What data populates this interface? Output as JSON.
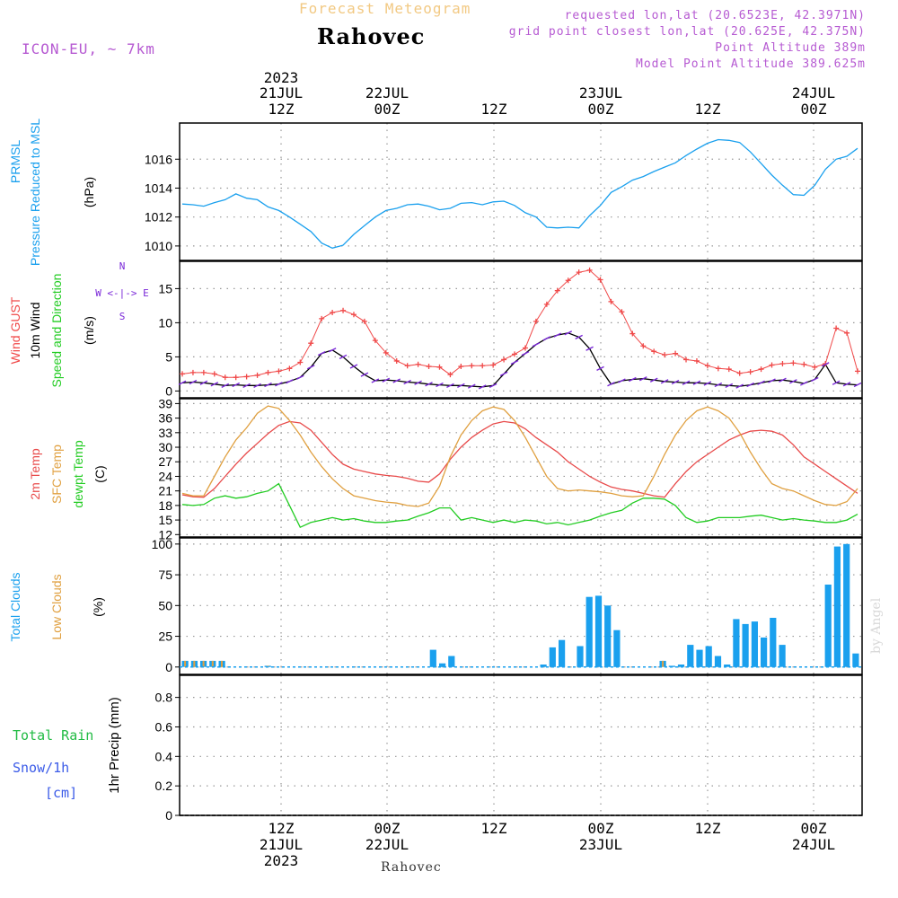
{
  "header": {
    "subtitle": "Forecast Meteogram",
    "title": "Rahovec",
    "model": "ICON-EU, ~ 7km",
    "info": [
      "requested lon,lat (20.6523E, 42.3971N)",
      "grid point closest lon,lat (20.625E, 42.375N)",
      "Point Altitude 389m",
      "Model Point Altitude 389.625m"
    ]
  },
  "footer": {
    "location": "Rahovec"
  },
  "credit": "by Angel",
  "colors": {
    "pressure": "#1aa0ee",
    "gust": "#f04848",
    "wind": "#000000",
    "windArrow": "#7a28d8",
    "temp2m": "#e84a4a",
    "sfcTemp": "#e0a040",
    "dewpt": "#22cc22",
    "totalClouds": "#1aa0ee",
    "lowClouds": "#e0a040",
    "rain": "#22bb44",
    "snow": "#3b5be8",
    "grid": "#999999"
  },
  "chart_data": [
    {
      "panel": "pressure",
      "type": "line",
      "ylabels": [
        "PRMSL",
        "Pressure Reduced to MSL"
      ],
      "unit": "(hPa)",
      "ylim": [
        1009,
        1018.5
      ],
      "yticks": [
        1010,
        1012,
        1014,
        1016
      ],
      "series": [
        {
          "x": [
            0,
            1,
            2,
            3,
            4,
            5,
            6,
            7,
            8,
            9,
            10,
            11,
            12,
            13,
            14,
            15,
            16,
            17,
            18,
            19,
            20,
            21,
            22,
            23,
            24,
            25,
            26,
            27,
            28,
            29,
            30,
            31,
            32,
            33,
            34,
            35,
            36,
            37,
            38,
            39,
            40,
            41,
            42,
            43,
            44,
            45,
            46,
            47,
            48,
            49,
            50,
            51,
            52,
            53,
            54,
            55,
            56,
            57,
            58,
            59,
            60,
            61,
            62,
            63
          ],
          "values": [
            1012.9,
            1012.85,
            1012.75,
            1013.0,
            1013.2,
            1013.6,
            1013.3,
            1013.2,
            1012.7,
            1012.45,
            1012.0,
            1011.5,
            1011.0,
            1010.2,
            1009.85,
            1010.05,
            1010.8,
            1011.4,
            1012.0,
            1012.45,
            1012.6,
            1012.85,
            1012.9,
            1012.75,
            1012.5,
            1012.6,
            1012.95,
            1013.0,
            1012.85,
            1013.05,
            1013.1,
            1012.8,
            1012.3,
            1012.0,
            1011.3,
            1011.25,
            1011.3,
            1011.25,
            1012.1,
            1012.8,
            1013.7,
            1014.1,
            1014.55,
            1014.8,
            1015.15,
            1015.45,
            1015.75,
            1016.25,
            1016.7,
            1017.1,
            1017.35,
            1017.3,
            1017.15,
            1016.5,
            1015.7,
            1014.9,
            1014.2,
            1013.55,
            1013.5,
            1014.2,
            1015.3,
            1016.0,
            1016.2,
            1016.75
          ]
        }
      ]
    },
    {
      "panel": "wind",
      "type": "line",
      "ylabels": [
        "Wind GUST",
        "10m Wind",
        "Speed and Direction"
      ],
      "unit": "(m/s)",
      "compass": [
        "N",
        "W <-|-> E",
        "S"
      ],
      "ylim": [
        -1,
        19
      ],
      "yticks": [
        0,
        5,
        10,
        15
      ],
      "series": [
        {
          "name": "gust",
          "values": [
            2.5,
            2.7,
            2.7,
            2.5,
            2.0,
            2.0,
            2.1,
            2.3,
            2.7,
            2.9,
            3.3,
            4.2,
            7.0,
            10.6,
            11.5,
            11.8,
            11.2,
            10.2,
            7.4,
            5.6,
            4.4,
            3.7,
            3.9,
            3.6,
            3.5,
            2.4,
            3.6,
            3.7,
            3.7,
            3.8,
            4.6,
            5.4,
            6.3,
            10.2,
            12.7,
            14.7,
            16.2,
            17.4,
            17.7,
            16.3,
            13.1,
            11.6,
            8.4,
            6.6,
            5.8,
            5.3,
            5.5,
            4.6,
            4.4,
            3.7,
            3.3,
            3.2,
            2.6,
            2.8,
            3.2,
            3.8,
            4.0,
            4.1,
            3.9,
            3.5,
            4.0,
            9.2,
            8.5,
            2.9
          ]
        },
        {
          "name": "wind10m",
          "values": [
            1.2,
            1.3,
            1.2,
            1.0,
            0.8,
            0.9,
            0.8,
            0.8,
            0.9,
            1.0,
            1.4,
            2.0,
            3.5,
            5.5,
            6.0,
            5.0,
            3.6,
            2.4,
            1.5,
            1.6,
            1.5,
            1.3,
            1.2,
            1.0,
            0.9,
            0.8,
            0.8,
            0.7,
            0.6,
            0.8,
            2.5,
            4.2,
            5.5,
            6.8,
            7.7,
            8.2,
            8.5,
            7.9,
            6.2,
            3.3,
            1.0,
            1.5,
            1.7,
            1.8,
            1.6,
            1.4,
            1.3,
            1.2,
            1.2,
            1.1,
            0.9,
            0.8,
            0.7,
            0.9,
            1.2,
            1.5,
            1.6,
            1.4,
            1.1,
            1.7,
            3.9,
            1.2,
            1.0,
            0.9
          ]
        }
      ]
    },
    {
      "panel": "temperature",
      "type": "line",
      "ylabels": [
        "2m Temp",
        "SFC Temp",
        "dewpt Temp"
      ],
      "unit": "(C)",
      "ylim": [
        11.5,
        40
      ],
      "yticks": [
        12,
        15,
        18,
        21,
        24,
        27,
        30,
        33,
        36,
        39
      ],
      "series": [
        {
          "name": "2m Temp",
          "values": [
            20.2,
            19.8,
            19.7,
            21.5,
            24.0,
            26.5,
            28.8,
            30.8,
            32.8,
            34.5,
            35.3,
            35.0,
            33.5,
            31.0,
            28.5,
            26.5,
            25.5,
            25.0,
            24.5,
            24.2,
            24.0,
            23.6,
            23.0,
            22.8,
            24.5,
            27.5,
            30.0,
            32.0,
            33.5,
            34.8,
            35.3,
            35.0,
            33.8,
            32.0,
            30.5,
            29.0,
            27.0,
            25.5,
            24.0,
            22.8,
            21.8,
            21.3,
            21.0,
            20.5,
            20.0,
            19.7,
            22.5,
            25.0,
            27.0,
            28.5,
            30.0,
            31.5,
            32.5,
            33.3,
            33.5,
            33.3,
            32.5,
            30.5,
            28.0,
            26.5,
            25.0,
            23.5,
            22.0,
            20.5
          ]
        },
        {
          "name": "SFC Temp",
          "values": [
            20.5,
            20.0,
            20.0,
            24.0,
            28.0,
            31.5,
            34.0,
            37.0,
            38.5,
            38.0,
            35.5,
            32.5,
            29.0,
            26.0,
            23.5,
            21.5,
            20.0,
            19.5,
            19.0,
            18.7,
            18.5,
            18.0,
            17.8,
            18.5,
            22.0,
            28.0,
            32.5,
            35.5,
            37.5,
            38.3,
            37.8,
            35.5,
            32.0,
            28.0,
            24.0,
            21.5,
            21.0,
            21.2,
            21.0,
            20.8,
            20.5,
            20.0,
            19.8,
            20.0,
            24.0,
            28.5,
            32.5,
            35.5,
            37.5,
            38.3,
            37.5,
            36.0,
            33.0,
            29.0,
            25.5,
            22.5,
            21.5,
            21.0,
            20.0,
            19.0,
            18.2,
            18.0,
            18.8,
            21.5
          ]
        },
        {
          "name": "dewpt Temp",
          "values": [
            18.2,
            18.0,
            18.2,
            19.5,
            20.0,
            19.5,
            19.8,
            20.5,
            21.0,
            22.5,
            18.0,
            13.5,
            14.5,
            15.0,
            15.5,
            15.0,
            15.3,
            14.8,
            14.5,
            14.5,
            14.8,
            15.0,
            15.8,
            16.5,
            17.5,
            17.5,
            15.0,
            15.5,
            15.0,
            14.5,
            15.0,
            14.5,
            15.0,
            14.8,
            14.2,
            14.5,
            14.0,
            14.5,
            15.0,
            15.8,
            16.5,
            17.0,
            18.5,
            19.5,
            19.5,
            19.3,
            18.0,
            15.5,
            14.5,
            14.8,
            15.5,
            15.5,
            15.5,
            15.8,
            16.0,
            15.5,
            15.0,
            15.3,
            15.0,
            14.8,
            14.5,
            14.5,
            15.0,
            16.2
          ]
        }
      ]
    },
    {
      "panel": "clouds",
      "type": "bar",
      "ylabels": [
        "Total Clouds",
        "Low Clouds"
      ],
      "unit": "(%)",
      "ylim": [
        -6,
        105
      ],
      "yticks": [
        0,
        25,
        50,
        75,
        100
      ],
      "series": [
        {
          "name": "Total Clouds",
          "values": [
            5,
            5,
            5,
            5,
            5,
            0,
            0,
            0,
            0,
            1,
            0,
            0,
            0,
            0,
            0,
            0,
            0,
            0,
            0,
            0,
            0,
            0,
            0,
            0,
            0,
            0,
            0,
            14,
            3,
            9,
            0,
            0,
            0,
            0,
            0,
            0,
            0,
            0,
            0,
            2,
            16,
            22,
            0,
            17,
            57,
            58,
            50,
            30,
            0,
            0,
            0,
            0,
            5,
            1,
            2,
            18,
            14,
            17,
            9,
            2,
            39,
            35,
            37,
            24,
            40,
            18,
            0,
            0,
            0,
            0,
            67,
            98,
            100,
            11
          ]
        },
        {
          "name": "Low Clouds",
          "values": [
            5,
            5,
            5,
            5,
            5,
            0,
            0,
            0,
            0,
            1,
            0,
            0,
            0,
            0,
            0,
            0,
            0,
            0,
            0,
            0,
            0,
            0,
            0,
            0,
            0,
            0,
            0,
            0,
            0,
            0,
            0,
            0,
            0,
            0,
            0,
            0,
            0,
            0,
            0,
            0,
            0,
            0,
            0,
            0,
            0,
            0,
            0,
            0,
            0,
            0,
            0,
            0,
            5,
            0,
            0,
            0,
            0,
            0,
            0,
            0,
            0,
            0,
            0,
            0,
            0,
            0,
            0,
            0,
            0,
            0,
            0,
            0,
            0,
            0
          ]
        }
      ]
    },
    {
      "panel": "precip",
      "type": "bar",
      "ylabels": [
        "Total  Rain",
        "Snow/1h",
        "[cm]"
      ],
      "axis_label": "1hr Precip (mm)",
      "ylim": [
        0,
        0.95
      ],
      "yticks": [
        "0",
        "0.2",
        "0.4",
        "0.6",
        "0.8"
      ],
      "series": [
        {
          "name": "Total Rain",
          "values": []
        }
      ]
    }
  ],
  "time_axis": {
    "top": [
      {
        "lines": [
          "2023",
          "21JUL",
          "12Z"
        ]
      },
      {
        "lines": [
          "22JUL",
          "00Z"
        ]
      },
      {
        "lines": [
          "12Z"
        ]
      },
      {
        "lines": [
          "23JUL",
          "00Z"
        ]
      },
      {
        "lines": [
          "12Z"
        ]
      },
      {
        "lines": [
          "24JUL",
          "00Z"
        ]
      }
    ],
    "bottom": [
      {
        "lines": [
          "12Z",
          "21JUL",
          "2023"
        ]
      },
      {
        "lines": [
          "00Z",
          "22JUL"
        ]
      },
      {
        "lines": [
          "12Z"
        ]
      },
      {
        "lines": [
          "00Z",
          "23JUL"
        ]
      },
      {
        "lines": [
          "12Z"
        ]
      },
      {
        "lines": [
          "00Z",
          "24JUL"
        ]
      }
    ]
  }
}
